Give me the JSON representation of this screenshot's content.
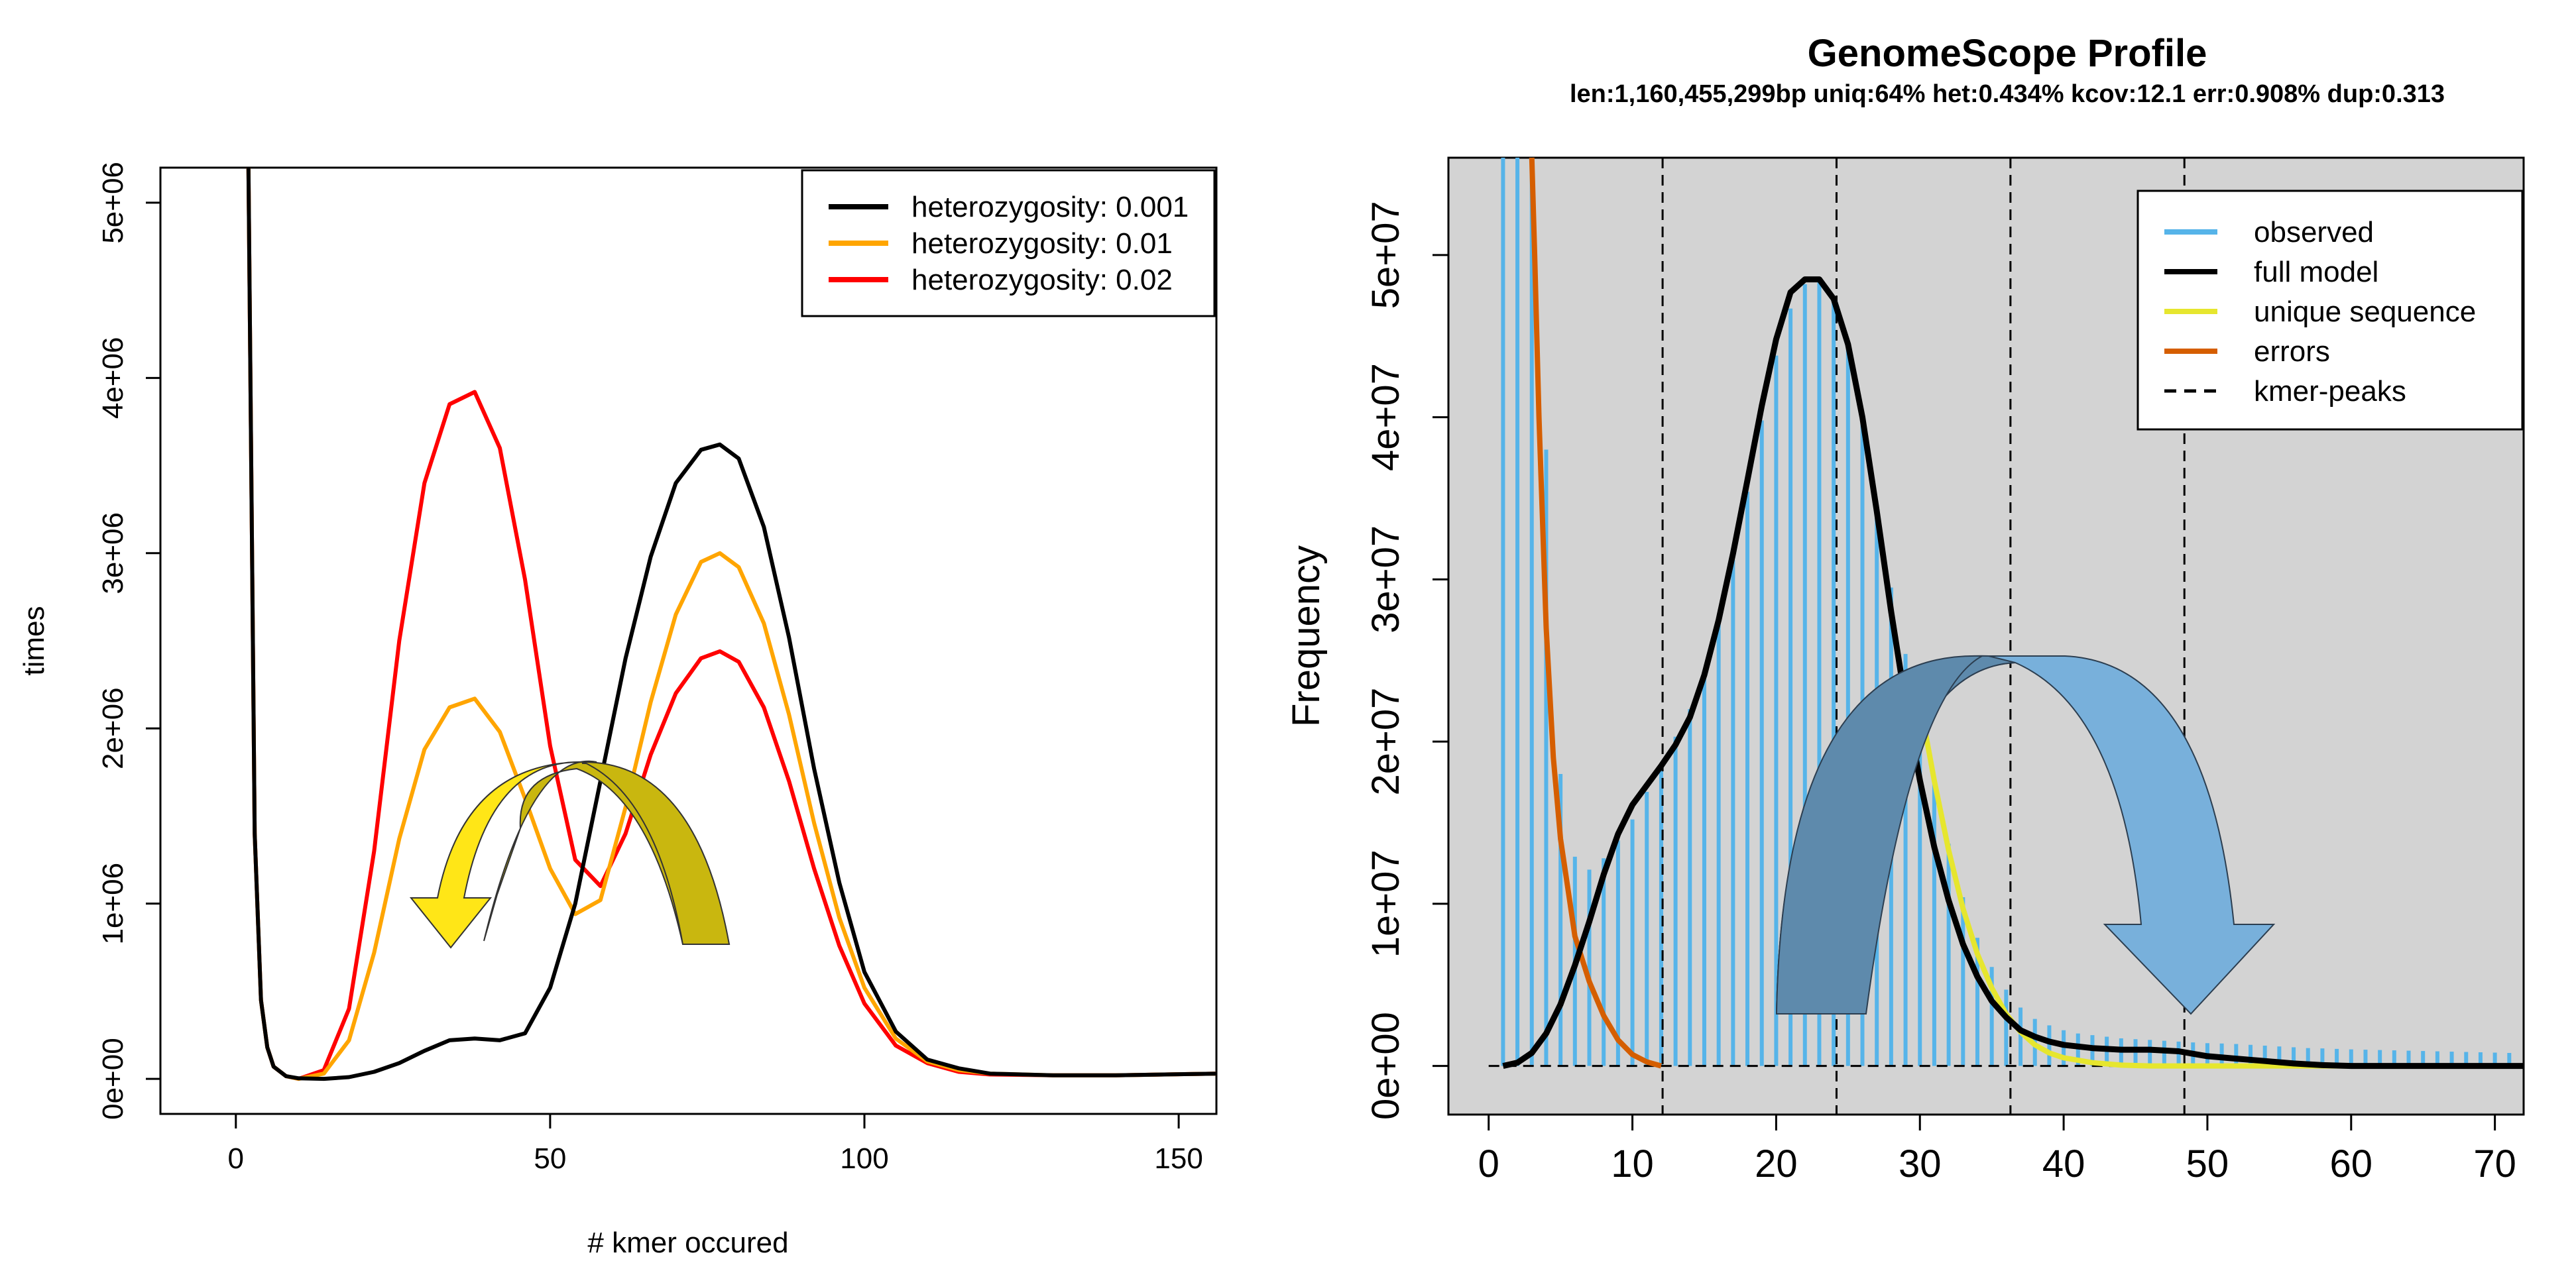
{
  "chart_data": [
    {
      "type": "line",
      "title": "",
      "xlabel": "# kmer occured",
      "ylabel": "times",
      "xlim": [
        -12,
        156
      ],
      "ylim": [
        -200000,
        5200000
      ],
      "x_ticks": [
        0,
        50,
        100,
        150
      ],
      "x_tick_labels": [
        "0",
        "50",
        "100",
        "150"
      ],
      "y_ticks": [
        0,
        1000000,
        2000000,
        3000000,
        4000000,
        5000000
      ],
      "y_tick_labels": [
        "0e+00",
        "1e+06",
        "2e+06",
        "3e+06",
        "4e+06",
        "5e+06"
      ],
      "legend_position": "top-right",
      "series": [
        {
          "name": "heterozygosity: 0.001",
          "color": "#000000",
          "x": [
            2,
            3,
            4,
            5,
            6,
            8,
            10,
            14,
            18,
            22,
            26,
            30,
            34,
            38,
            42,
            46,
            50,
            54,
            58,
            62,
            66,
            70,
            74,
            77,
            80,
            84,
            88,
            92,
            96,
            100,
            105,
            110,
            115,
            120,
            130,
            140,
            156
          ],
          "y": [
            5200000,
            1400000,
            450000,
            180000,
            70000,
            15000,
            3000,
            0,
            10000,
            40000,
            90000,
            160000,
            220000,
            230000,
            220000,
            260000,
            520000,
            1000000,
            1700000,
            2400000,
            2980000,
            3400000,
            3590000,
            3620000,
            3540000,
            3150000,
            2520000,
            1770000,
            1120000,
            610000,
            270000,
            110000,
            60000,
            30000,
            20000,
            20000,
            30000
          ]
        },
        {
          "name": "heterozygosity: 0.01",
          "color": "#FFA500",
          "x": [
            2,
            3,
            4,
            5,
            6,
            8,
            10,
            14,
            18,
            22,
            26,
            30,
            34,
            38,
            42,
            46,
            50,
            54,
            58,
            62,
            66,
            70,
            74,
            77,
            80,
            84,
            88,
            92,
            96,
            100,
            105,
            110,
            115,
            120,
            130,
            140,
            156
          ],
          "y": [
            5200000,
            1400000,
            450000,
            180000,
            70000,
            15000,
            0,
            30000,
            220000,
            720000,
            1370000,
            1880000,
            2120000,
            2170000,
            1980000,
            1600000,
            1200000,
            940000,
            1020000,
            1550000,
            2150000,
            2650000,
            2950000,
            3000000,
            2920000,
            2600000,
            2080000,
            1460000,
            920000,
            520000,
            230000,
            100000,
            50000,
            30000,
            20000,
            20000,
            30000
          ]
        },
        {
          "name": "heterozygosity: 0.02",
          "color": "#FF0000",
          "x": [
            2,
            3,
            4,
            5,
            6,
            8,
            10,
            14,
            18,
            22,
            26,
            30,
            34,
            38,
            42,
            46,
            50,
            54,
            58,
            62,
            66,
            70,
            74,
            77,
            80,
            84,
            88,
            92,
            96,
            100,
            105,
            110,
            115,
            120,
            130,
            140,
            156
          ],
          "y": [
            5200000,
            1400000,
            450000,
            180000,
            70000,
            15000,
            0,
            50000,
            400000,
            1300000,
            2500000,
            3400000,
            3850000,
            3920000,
            3600000,
            2850000,
            1900000,
            1250000,
            1100000,
            1400000,
            1850000,
            2200000,
            2400000,
            2440000,
            2380000,
            2120000,
            1700000,
            1200000,
            760000,
            430000,
            190000,
            90000,
            40000,
            25000,
            20000,
            20000,
            30000
          ]
        }
      ]
    },
    {
      "type": "bar",
      "title": "GenomeScope Profile",
      "subtitle": "len:1,160,455,299bp uniq:64% het:0.434% kcov:12.1 err:0.908% dup:0.313",
      "xlabel": "",
      "ylabel": "Frequency",
      "xlim": [
        -2.8,
        72
      ],
      "ylim": [
        -3000000,
        56000000
      ],
      "background": "#D3D3D3",
      "x_ticks": [
        0,
        10,
        20,
        30,
        40,
        50,
        60,
        70
      ],
      "x_tick_labels": [
        "0",
        "10",
        "20",
        "30",
        "40",
        "50",
        "60",
        "70"
      ],
      "y_ticks": [
        0,
        10000000,
        20000000,
        30000000,
        40000000,
        50000000
      ],
      "y_tick_labels": [
        "0e+00",
        "1e+07",
        "2e+07",
        "3e+07",
        "4e+07",
        "5e+07"
      ],
      "kmer_peaks": [
        12.1,
        24.2,
        36.3,
        48.4
      ],
      "legend_position": "top-right",
      "legend": [
        {
          "label": "observed",
          "color": "#56B4E9",
          "dash": false
        },
        {
          "label": "full model",
          "color": "#000000",
          "dash": false
        },
        {
          "label": "unique sequence",
          "color": "#E6E62E",
          "dash": false
        },
        {
          "label": "errors",
          "color": "#D55E00",
          "dash": false
        },
        {
          "label": "kmer-peaks",
          "color": "#000000",
          "dash": true
        }
      ],
      "observed": {
        "x": [
          1,
          2,
          3,
          4,
          5,
          6,
          7,
          8,
          9,
          10,
          11,
          12,
          13,
          14,
          15,
          16,
          17,
          18,
          19,
          20,
          21,
          22,
          23,
          24,
          25,
          26,
          27,
          28,
          29,
          30,
          31,
          32,
          33,
          34,
          35,
          36,
          37,
          38,
          39,
          40,
          41,
          42,
          43,
          44,
          45,
          46,
          47,
          48,
          49,
          50,
          51,
          52,
          53,
          54,
          55,
          56,
          57,
          58,
          59,
          60,
          61,
          62,
          63,
          64,
          65,
          66,
          67,
          68,
          69,
          70,
          71
        ],
        "y": [
          56000000,
          56000000,
          56000000,
          38000000,
          18000000,
          12900000,
          12100000,
          12800000,
          13900000,
          15200000,
          16900000,
          18600000,
          20300000,
          22000000,
          24300000,
          27400000,
          31200000,
          35400000,
          39800000,
          43800000,
          46700000,
          48200000,
          48500000,
          47300000,
          44300000,
          39900000,
          34600000,
          29500000,
          25400000,
          22100000,
          17600000,
          13700000,
          10400000,
          7900000,
          6100000,
          4700000,
          3600000,
          2900000,
          2500000,
          2200000,
          2000000,
          1900000,
          1800000,
          1700000,
          1650000,
          1600000,
          1550000,
          1500000,
          1450000,
          1400000,
          1380000,
          1350000,
          1300000,
          1250000,
          1200000,
          1150000,
          1100000,
          1080000,
          1050000,
          1020000,
          1000000,
          980000,
          960000,
          940000,
          920000,
          900000,
          880000,
          860000,
          840000,
          820000,
          800000
        ]
      },
      "full_model": {
        "x": [
          1,
          2,
          3,
          4,
          5,
          6,
          7,
          8,
          9,
          10,
          11,
          12,
          13,
          14,
          15,
          16,
          17,
          18,
          19,
          20,
          21,
          22,
          23,
          24,
          25,
          26,
          27,
          28,
          29,
          30,
          31,
          32,
          33,
          34,
          35,
          36,
          37,
          38,
          39,
          40,
          42,
          44,
          46,
          48,
          50,
          52,
          54,
          56,
          58,
          60,
          62,
          64,
          66,
          68,
          70,
          72
        ],
        "y": [
          0,
          200000,
          800000,
          2000000,
          3800000,
          6200000,
          8900000,
          11800000,
          14300000,
          16100000,
          17300000,
          18500000,
          19800000,
          21500000,
          24100000,
          27500000,
          31600000,
          36100000,
          40700000,
          44800000,
          47700000,
          48500000,
          48500000,
          47300000,
          44500000,
          40000000,
          34200000,
          28000000,
          22400000,
          17600000,
          13500000,
          10200000,
          7500000,
          5500000,
          4000000,
          3000000,
          2200000,
          1800000,
          1500000,
          1300000,
          1100000,
          1000000,
          1000000,
          900000,
          600000,
          450000,
          300000,
          150000,
          50000,
          0,
          0,
          0,
          0,
          0,
          0,
          0
        ]
      },
      "unique_sequence": {
        "x": [
          30,
          31,
          32,
          33,
          34,
          35,
          36,
          37,
          38,
          39,
          40,
          42,
          44,
          46,
          48,
          50,
          55,
          60,
          65,
          70,
          72
        ],
        "y": [
          22400000,
          17600000,
          13300000,
          9700000,
          6900000,
          4800000,
          3200000,
          2100000,
          1300000,
          800000,
          500000,
          200000,
          50000,
          0,
          0,
          0,
          0,
          0,
          0,
          0,
          0
        ]
      },
      "errors": {
        "x": [
          3,
          3.2,
          3.5,
          4,
          4.5,
          5,
          5.5,
          6,
          7,
          8,
          9,
          10,
          11,
          12
        ],
        "y": [
          56000000,
          50000000,
          40000000,
          27000000,
          19000000,
          14000000,
          11000000,
          8000000,
          5200000,
          3100000,
          1600000,
          700000,
          250000,
          0
        ]
      }
    }
  ],
  "left_legend": [
    {
      "label": "heterozygosity: 0.001",
      "color": "#000000"
    },
    {
      "label": "heterozygosity: 0.01",
      "color": "#FFA500"
    },
    {
      "label": "heterozygosity: 0.02",
      "color": "#FF0000"
    }
  ]
}
